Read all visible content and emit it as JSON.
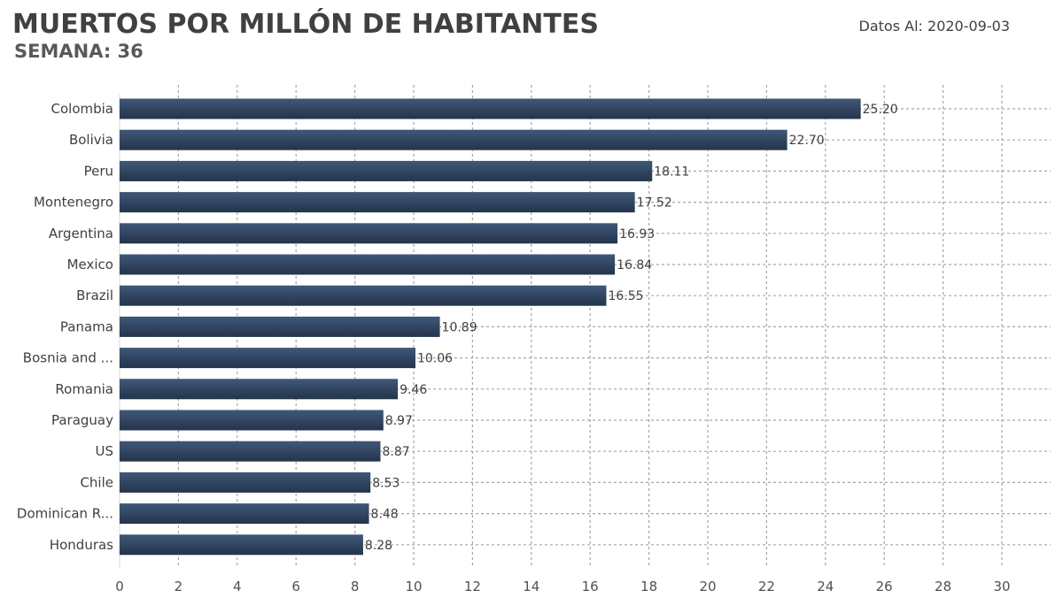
{
  "header": {
    "title": "MUERTOS POR MILLÓN DE HABITANTES",
    "subtitle": "SEMANA: 36",
    "date_label": "Datos Al: 2020-09-03"
  },
  "colors": {
    "bar_top": "#3f5878",
    "bar_bottom": "#24344b",
    "grid": "#a6a6a6"
  },
  "chart_data": {
    "type": "bar",
    "orientation": "horizontal",
    "title": "MUERTOS POR MILLÓN DE HABITANTES",
    "subtitle": "SEMANA: 36",
    "categories": [
      "Colombia",
      "Bolivia",
      "Peru",
      "Montenegro",
      "Argentina",
      "Mexico",
      "Brazil",
      "Panama",
      "Bosnia and ...",
      "Romania",
      "Paraguay",
      "US",
      "Chile",
      "Dominican R...",
      "Honduras"
    ],
    "values": [
      25.2,
      22.7,
      18.11,
      17.52,
      16.93,
      16.84,
      16.55,
      10.89,
      10.06,
      9.46,
      8.97,
      8.87,
      8.53,
      8.48,
      8.28
    ],
    "value_labels": [
      "25.20",
      "22.70",
      "18.11",
      "17.52",
      "16.93",
      "16.84",
      "16.55",
      "10.89",
      "10.06",
      "9.46",
      "8.97",
      "8.87",
      "8.53",
      "8.48",
      "8.28"
    ],
    "xlim": [
      0,
      30
    ],
    "xticks": [
      0,
      2,
      4,
      6,
      8,
      10,
      12,
      14,
      16,
      18,
      20,
      22,
      24,
      26,
      28,
      30
    ],
    "xlabel": "",
    "ylabel": "",
    "grid": true,
    "legend": "none"
  }
}
